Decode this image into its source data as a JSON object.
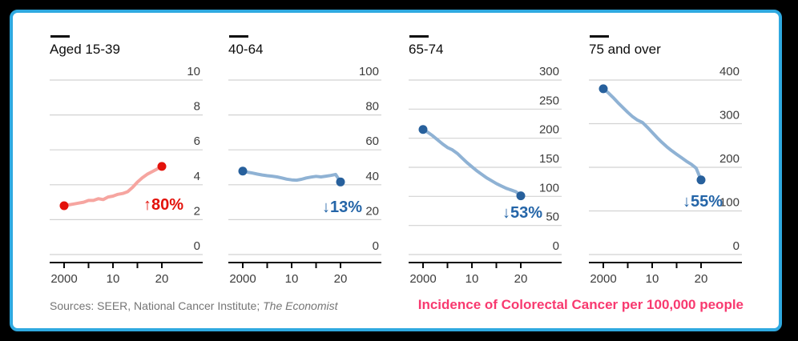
{
  "frame": {
    "background": "#000000",
    "card_background": "#ffffff",
    "border_color": "#2fa9e0"
  },
  "footer": {
    "sources_prefix": "Sources: SEER, National Cancer Institute; ",
    "sources_italic": "The Economist",
    "headline": "Incidence of Colorectal Cancer per 100,000 people",
    "headline_color": "#f8396f"
  },
  "style_colors": {
    "gridline": "#d2d2d2",
    "axis": "#0a0a0a",
    "tick_text": "#3c3c3c"
  },
  "chart_data": [
    {
      "type": "line",
      "title": "Aged 15-39",
      "years": [
        2000,
        2001,
        2002,
        2003,
        2004,
        2005,
        2006,
        2007,
        2008,
        2009,
        2010,
        2011,
        2012,
        2013,
        2014,
        2015,
        2016,
        2017,
        2018,
        2019,
        2020
      ],
      "values": [
        2.8,
        2.85,
        2.9,
        2.95,
        3.0,
        3.1,
        3.1,
        3.2,
        3.15,
        3.3,
        3.35,
        3.45,
        3.5,
        3.6,
        3.85,
        4.15,
        4.4,
        4.6,
        4.75,
        4.9,
        5.05
      ],
      "ylim": [
        0,
        10
      ],
      "yticks": [
        0,
        2,
        4,
        6,
        8,
        10
      ],
      "xticks": [
        {
          "year": 2000,
          "label": "2000"
        },
        {
          "year": 2005,
          "label": ""
        },
        {
          "year": 2010,
          "label": "10"
        },
        {
          "year": 2015,
          "label": ""
        },
        {
          "year": 2020,
          "label": "20"
        }
      ],
      "grid": "on",
      "legend": "none",
      "y_axis_side": "right",
      "line_color": "#f6a5a0",
      "dot_color": "#e3120b",
      "annotation": {
        "text": "↑80%",
        "color": "#e3120b"
      }
    },
    {
      "type": "line",
      "title": "40-64",
      "years": [
        2000,
        2001,
        2002,
        2003,
        2004,
        2005,
        2006,
        2007,
        2008,
        2009,
        2010,
        2011,
        2012,
        2013,
        2014,
        2015,
        2016,
        2017,
        2018,
        2019,
        2020
      ],
      "values": [
        47.8,
        47.2,
        46.7,
        46.1,
        45.6,
        45.2,
        44.9,
        44.5,
        43.9,
        43.2,
        42.8,
        42.6,
        43.1,
        43.9,
        44.4,
        44.8,
        44.5,
        44.9,
        45.3,
        45.9,
        41.6
      ],
      "ylim": [
        0,
        100
      ],
      "yticks": [
        0,
        20,
        40,
        60,
        80,
        100
      ],
      "xticks": [
        {
          "year": 2000,
          "label": "2000"
        },
        {
          "year": 2005,
          "label": ""
        },
        {
          "year": 2010,
          "label": "10"
        },
        {
          "year": 2015,
          "label": ""
        },
        {
          "year": 2020,
          "label": "20"
        }
      ],
      "grid": "on",
      "legend": "none",
      "y_axis_side": "right",
      "line_color": "#8fb2d4",
      "dot_color": "#27609c",
      "annotation": {
        "text": "↓13%",
        "color": "#2465a8"
      }
    },
    {
      "type": "line",
      "title": "65-74",
      "years": [
        2000,
        2001,
        2002,
        2003,
        2004,
        2005,
        2006,
        2007,
        2008,
        2009,
        2010,
        2011,
        2012,
        2013,
        2014,
        2015,
        2016,
        2017,
        2018,
        2019,
        2020
      ],
      "values": [
        215,
        210,
        204,
        197,
        190,
        184,
        180,
        174,
        166,
        158,
        151,
        144,
        138,
        132,
        127,
        122,
        118,
        114,
        111,
        108,
        101
      ],
      "ylim": [
        0,
        300
      ],
      "yticks": [
        0,
        50,
        100,
        150,
        200,
        250,
        300
      ],
      "xticks": [
        {
          "year": 2000,
          "label": "2000"
        },
        {
          "year": 2005,
          "label": ""
        },
        {
          "year": 2010,
          "label": "10"
        },
        {
          "year": 2015,
          "label": ""
        },
        {
          "year": 2020,
          "label": "20"
        }
      ],
      "grid": "on",
      "legend": "none",
      "y_axis_side": "right",
      "line_color": "#8fb2d4",
      "dot_color": "#27609c",
      "annotation": {
        "text": "↓53%",
        "color": "#2465a8"
      }
    },
    {
      "type": "line",
      "title": "75 and over",
      "years": [
        2000,
        2001,
        2002,
        2003,
        2004,
        2005,
        2006,
        2007,
        2008,
        2009,
        2010,
        2011,
        2012,
        2013,
        2014,
        2015,
        2016,
        2017,
        2018,
        2019,
        2020
      ],
      "values": [
        380,
        371,
        360,
        348,
        337,
        326,
        316,
        308,
        303,
        292,
        280,
        268,
        257,
        247,
        238,
        230,
        222,
        214,
        207,
        198,
        171
      ],
      "ylim": [
        0,
        400
      ],
      "yticks": [
        0,
        100,
        200,
        300,
        400
      ],
      "xticks": [
        {
          "year": 2000,
          "label": "2000"
        },
        {
          "year": 2005,
          "label": ""
        },
        {
          "year": 2010,
          "label": "10"
        },
        {
          "year": 2015,
          "label": ""
        },
        {
          "year": 2020,
          "label": "20"
        }
      ],
      "grid": "on",
      "legend": "none",
      "y_axis_side": "right",
      "line_color": "#8fb2d4",
      "dot_color": "#27609c",
      "annotation": {
        "text": "↓55%",
        "color": "#2465a8"
      }
    }
  ]
}
